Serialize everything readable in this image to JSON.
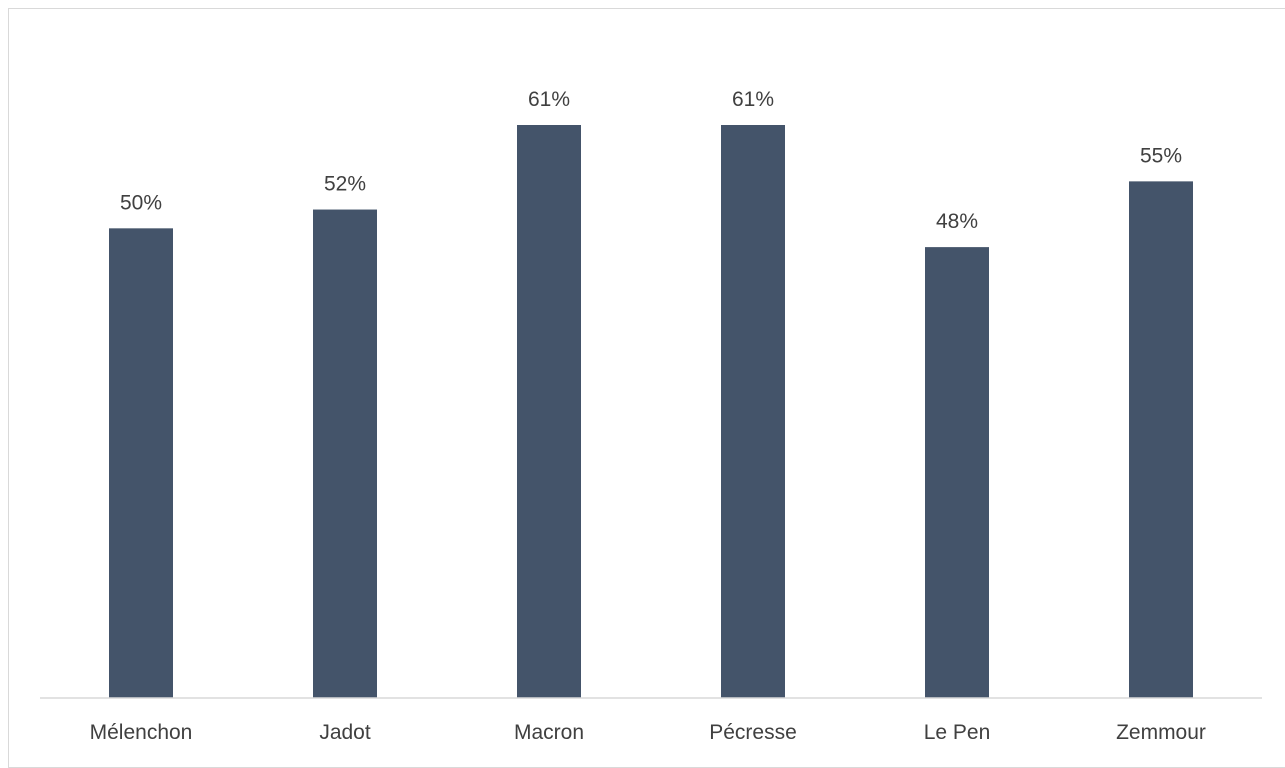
{
  "chart_data": {
    "type": "bar",
    "categories": [
      "Mélenchon",
      "Jadot",
      "Macron",
      "Pécresse",
      "Le Pen",
      "Zemmour"
    ],
    "values": [
      50,
      52,
      61,
      61,
      48,
      55
    ],
    "data_labels": [
      "50%",
      "52%",
      "61%",
      "61%",
      "48%",
      "55%"
    ],
    "title": "",
    "xlabel": "",
    "ylabel": "",
    "ylim": [
      0,
      61
    ],
    "grid": false,
    "legend": "none",
    "bar_color": "#44546a",
    "axis_color": "#d9d9d9",
    "text_color": "#404040"
  }
}
